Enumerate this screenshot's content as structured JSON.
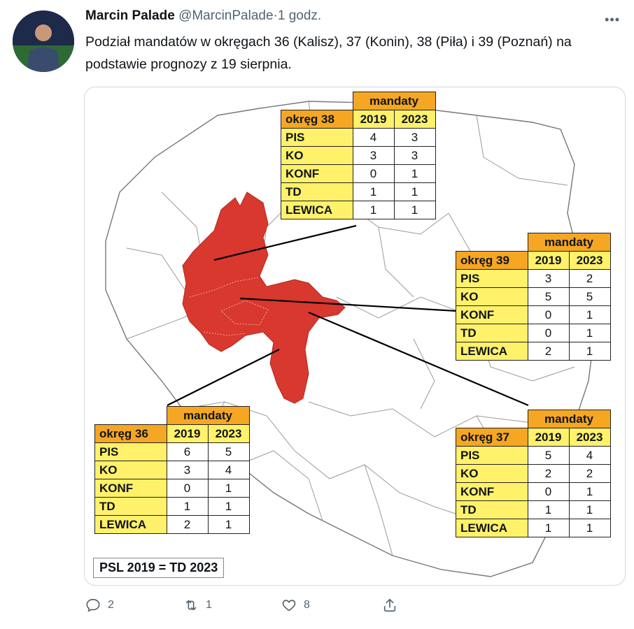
{
  "tweet": {
    "author_name": "Marcin Palade",
    "handle": "@MarcinPalade",
    "separator": "·",
    "time": "1 godz.",
    "text": "Podział mandatów w okręgach 36 (Kalisz), 37 (Konin), 38 (Piła) i 39 (Poznań) na podstawie prognozy z 19 sierpnia."
  },
  "image": {
    "header_label": "mandaty",
    "year_a": "2019",
    "year_b": "2023",
    "tables": [
      {
        "district": "okręg 38",
        "rows": [
          {
            "party": "PIS",
            "a": "4",
            "b": "3"
          },
          {
            "party": "KO",
            "a": "3",
            "b": "3"
          },
          {
            "party": "KONF",
            "a": "0",
            "b": "1"
          },
          {
            "party": "TD",
            "a": "1",
            "b": "1"
          },
          {
            "party": "LEWICA",
            "a": "1",
            "b": "1"
          }
        ]
      },
      {
        "district": "okręg 39",
        "rows": [
          {
            "party": "PIS",
            "a": "3",
            "b": "2"
          },
          {
            "party": "KO",
            "a": "5",
            "b": "5"
          },
          {
            "party": "KONF",
            "a": "0",
            "b": "1"
          },
          {
            "party": "TD",
            "a": "0",
            "b": "1"
          },
          {
            "party": "LEWICA",
            "a": "2",
            "b": "1"
          }
        ]
      },
      {
        "district": "okręg 36",
        "rows": [
          {
            "party": "PIS",
            "a": "6",
            "b": "5"
          },
          {
            "party": "KO",
            "a": "3",
            "b": "4"
          },
          {
            "party": "KONF",
            "a": "0",
            "b": "1"
          },
          {
            "party": "TD",
            "a": "1",
            "b": "1"
          },
          {
            "party": "LEWICA",
            "a": "2",
            "b": "1"
          }
        ]
      },
      {
        "district": "okręg 37",
        "rows": [
          {
            "party": "PIS",
            "a": "5",
            "b": "4"
          },
          {
            "party": "KO",
            "a": "2",
            "b": "2"
          },
          {
            "party": "KONF",
            "a": "0",
            "b": "1"
          },
          {
            "party": "TD",
            "a": "1",
            "b": "1"
          },
          {
            "party": "LEWICA",
            "a": "1",
            "b": "1"
          }
        ]
      }
    ],
    "note": "PSL 2019 = TD 2023",
    "highlight_color": "#d8382e"
  },
  "actions": {
    "replies": "2",
    "retweets": "1",
    "likes": "8"
  }
}
